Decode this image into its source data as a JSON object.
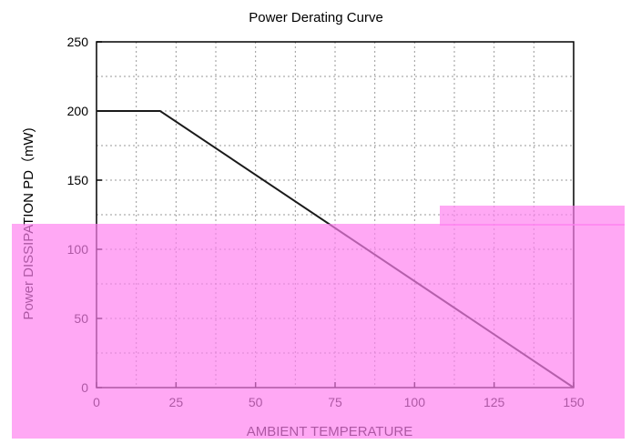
{
  "chart_data": {
    "type": "line",
    "title": "Power Derating Curve",
    "xlabel": "AMBIENT TEMPERATURE",
    "ylabel": "Power DISSIPATION PD（mW)",
    "xlim": [
      0,
      150
    ],
    "ylim": [
      0,
      250
    ],
    "x_ticks": [
      "0",
      "25",
      "50",
      "75",
      "100",
      "125",
      "150"
    ],
    "y_ticks": [
      "0",
      "50",
      "100",
      "150",
      "200",
      "250"
    ],
    "grid": true,
    "series": [
      {
        "x": [
          0,
          20,
          150
        ],
        "y": [
          200,
          200,
          0
        ]
      }
    ]
  },
  "colors": {
    "overlay": "#ff80f0",
    "line": "#1a1a1a",
    "axis": "#000000",
    "grid": "#9a9a9a"
  }
}
